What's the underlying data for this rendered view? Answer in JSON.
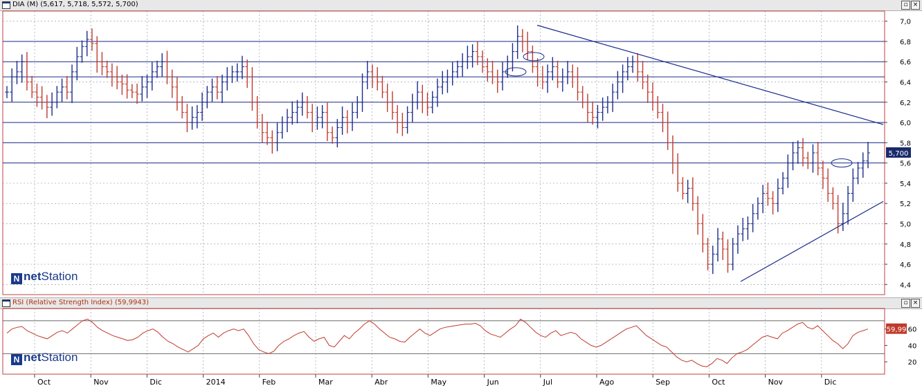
{
  "price_panel": {
    "title": "DIA (M) (5,617, 5,718, 5,572, 5,700)",
    "last_value_label": "5,700"
  },
  "rsi_panel": {
    "title": "RSI (Relative Strength Index) (59,9943)",
    "last_value_label": "59,99"
  },
  "logo_text": {
    "net": "net",
    "station": "Station"
  },
  "window_buttons": {
    "restore": "▫",
    "close": "×"
  },
  "colors": {
    "up": "#1a2a8a",
    "down": "#c0392b",
    "rsi_line": "#c0392b",
    "grid": "#9aa0b0",
    "frame": "#c04040"
  },
  "chart_data": [
    {
      "type": "ohlc",
      "title": "DIA (M) (5,617, 5,718, 5,572, 5,700)",
      "x_ticks": [
        "Oct",
        "Nov",
        "Dic",
        "2014",
        "Feb",
        "Mar",
        "Abr",
        "May",
        "Jun",
        "Jul",
        "Ago",
        "Sep",
        "Oct",
        "Nov",
        "Dic"
      ],
      "y_ticks": [
        "4,4",
        "4,6",
        "4,8",
        "5,0",
        "5,2",
        "5,4",
        "5,6",
        "5,8",
        "6,0",
        "6,2",
        "6,4",
        "6,6",
        "6,8",
        "7,0"
      ],
      "ylim": [
        4.3,
        7.1
      ],
      "horizontal_levels": [
        5.6,
        5.8,
        6.0,
        6.2,
        6.45,
        6.6,
        6.8
      ],
      "closes": [
        6.3,
        6.45,
        6.5,
        6.6,
        6.4,
        6.3,
        6.25,
        6.2,
        6.15,
        6.2,
        6.3,
        6.35,
        6.3,
        6.5,
        6.65,
        6.75,
        6.82,
        6.78,
        6.6,
        6.55,
        6.5,
        6.45,
        6.4,
        6.38,
        6.32,
        6.3,
        6.28,
        6.35,
        6.4,
        6.5,
        6.55,
        6.6,
        6.45,
        6.35,
        6.2,
        6.1,
        6.0,
        6.05,
        6.1,
        6.2,
        6.3,
        6.35,
        6.3,
        6.4,
        6.45,
        6.5,
        6.5,
        6.55,
        6.45,
        6.2,
        6.0,
        5.9,
        5.85,
        5.8,
        5.9,
        6.0,
        6.05,
        6.1,
        6.15,
        6.2,
        6.1,
        6.0,
        6.05,
        6.1,
        5.9,
        5.85,
        5.95,
        6.05,
        6.0,
        6.1,
        6.2,
        6.4,
        6.5,
        6.45,
        6.4,
        6.3,
        6.2,
        6.1,
        6.0,
        5.95,
        6.1,
        6.2,
        6.3,
        6.2,
        6.15,
        6.25,
        6.35,
        6.4,
        6.45,
        6.5,
        6.55,
        6.6,
        6.65,
        6.7,
        6.65,
        6.55,
        6.5,
        6.45,
        6.4,
        6.5,
        6.6,
        6.7,
        6.85,
        6.8,
        6.7,
        6.55,
        6.45,
        6.4,
        6.5,
        6.55,
        6.4,
        6.45,
        6.5,
        6.45,
        6.3,
        6.2,
        6.1,
        6.05,
        6.1,
        6.15,
        6.2,
        6.3,
        6.4,
        6.5,
        6.55,
        6.6,
        6.5,
        6.4,
        6.3,
        6.2,
        6.1,
        6.0,
        5.8,
        5.6,
        5.4,
        5.3,
        5.35,
        5.2,
        5.0,
        4.8,
        4.6,
        4.7,
        4.85,
        4.75,
        4.6,
        4.8,
        4.9,
        4.95,
        5.0,
        5.1,
        5.2,
        5.3,
        5.25,
        5.2,
        5.35,
        5.45,
        5.6,
        5.7,
        5.75,
        5.65,
        5.6,
        5.7,
        5.55,
        5.45,
        5.3,
        5.2,
        5.0,
        5.1,
        5.3,
        5.45,
        5.55,
        5.62,
        5.7
      ],
      "last_value": 5.7,
      "trendlines": [
        {
          "from": [
            6.96,
            "Jul"
          ],
          "to": [
            5.98,
            "end"
          ]
        },
        {
          "from": [
            4.43,
            "Oct"
          ],
          "to": [
            5.22,
            "end"
          ]
        }
      ]
    },
    {
      "type": "line",
      "title": "RSI (Relative Strength Index) (59,9943)",
      "y_ticks": [
        "20",
        "40",
        "60"
      ],
      "ylim": [
        5,
        85
      ],
      "horizontal_levels": [
        30,
        70
      ],
      "values": [
        55,
        60,
        62,
        63,
        58,
        55,
        52,
        50,
        48,
        52,
        56,
        58,
        55,
        60,
        65,
        70,
        72,
        68,
        62,
        58,
        55,
        52,
        50,
        48,
        46,
        47,
        50,
        55,
        58,
        60,
        56,
        50,
        45,
        42,
        38,
        35,
        32,
        36,
        40,
        48,
        52,
        55,
        50,
        55,
        58,
        60,
        58,
        60,
        52,
        42,
        35,
        32,
        30,
        33,
        40,
        45,
        48,
        52,
        55,
        57,
        50,
        45,
        48,
        50,
        40,
        38,
        45,
        52,
        48,
        55,
        60,
        66,
        70,
        66,
        60,
        55,
        50,
        48,
        45,
        44,
        50,
        55,
        60,
        55,
        52,
        56,
        60,
        62,
        63,
        64,
        65,
        66,
        66,
        67,
        64,
        58,
        54,
        52,
        50,
        55,
        60,
        64,
        72,
        68,
        62,
        56,
        52,
        50,
        55,
        58,
        52,
        54,
        56,
        54,
        48,
        44,
        40,
        38,
        40,
        44,
        48,
        52,
        56,
        60,
        62,
        64,
        58,
        52,
        48,
        44,
        40,
        38,
        32,
        26,
        22,
        20,
        22,
        18,
        15,
        14,
        18,
        24,
        22,
        18,
        25,
        30,
        32,
        35,
        40,
        45,
        50,
        52,
        50,
        48,
        55,
        58,
        62,
        66,
        68,
        62,
        60,
        64,
        58,
        52,
        46,
        42,
        36,
        42,
        52,
        56,
        58,
        59.99
      ],
      "last_value": 59.99
    }
  ]
}
